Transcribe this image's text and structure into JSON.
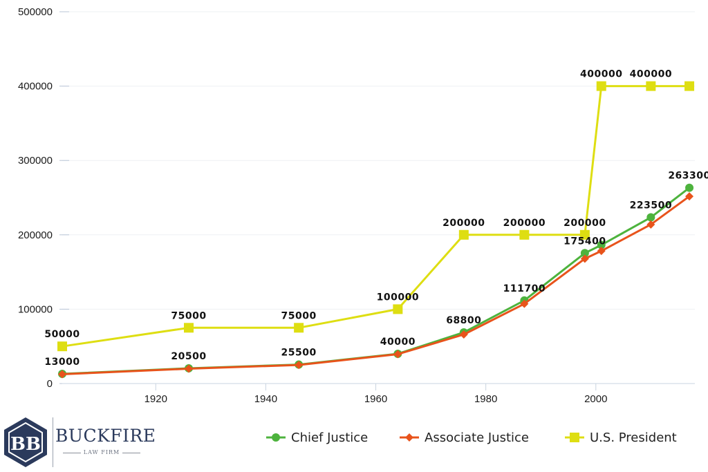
{
  "chart_data": {
    "type": "line",
    "title": "",
    "xlabel": "",
    "ylabel": "",
    "xlim": [
      1903,
      2018
    ],
    "ylim": [
      0,
      500000
    ],
    "y_ticks": [
      0,
      100000,
      200000,
      300000,
      400000,
      500000
    ],
    "x_ticks": [
      1920,
      1940,
      1960,
      1980,
      2000
    ],
    "grid": "horizontal",
    "legend_position": "bottom-right",
    "series": [
      {
        "name": "Chief Justice",
        "color": "#4db33d",
        "marker": "circle",
        "points": [
          {
            "x": 1903,
            "y": 13000
          },
          {
            "x": 1926,
            "y": 20500
          },
          {
            "x": 1946,
            "y": 25500
          },
          {
            "x": 1964,
            "y": 40000
          },
          {
            "x": 1976,
            "y": 68800
          },
          {
            "x": 1987,
            "y": 111700
          },
          {
            "x": 1998,
            "y": 175400
          },
          {
            "x": 2001,
            "y": 186300
          },
          {
            "x": 2010,
            "y": 223500
          },
          {
            "x": 2017,
            "y": 263300
          }
        ]
      },
      {
        "name": "Associate Justice",
        "color": "#e8531b",
        "marker": "diamond",
        "points": [
          {
            "x": 1903,
            "y": 12500
          },
          {
            "x": 1926,
            "y": 20000
          },
          {
            "x": 1946,
            "y": 25000
          },
          {
            "x": 1964,
            "y": 39500
          },
          {
            "x": 1976,
            "y": 66000
          },
          {
            "x": 1987,
            "y": 107200
          },
          {
            "x": 1998,
            "y": 167900
          },
          {
            "x": 2001,
            "y": 178300
          },
          {
            "x": 2010,
            "y": 213900
          },
          {
            "x": 2017,
            "y": 251800
          }
        ]
      },
      {
        "name": "U.S. President",
        "color": "#dede12",
        "marker": "square",
        "points": [
          {
            "x": 1903,
            "y": 50000
          },
          {
            "x": 1926,
            "y": 75000
          },
          {
            "x": 1946,
            "y": 75000
          },
          {
            "x": 1964,
            "y": 100000
          },
          {
            "x": 1976,
            "y": 200000
          },
          {
            "x": 1987,
            "y": 200000
          },
          {
            "x": 1998,
            "y": 200000
          },
          {
            "x": 2001,
            "y": 400000
          },
          {
            "x": 2010,
            "y": 400000
          },
          {
            "x": 2017,
            "y": 400000
          }
        ]
      }
    ],
    "data_labels": [
      {
        "x": 1903,
        "y": 50000,
        "text": "50000"
      },
      {
        "x": 1926,
        "y": 75000,
        "text": "75000"
      },
      {
        "x": 1946,
        "y": 75000,
        "text": "75000"
      },
      {
        "x": 1964,
        "y": 100000,
        "text": "100000"
      },
      {
        "x": 1976,
        "y": 200000,
        "text": "200000"
      },
      {
        "x": 1987,
        "y": 200000,
        "text": "200000"
      },
      {
        "x": 1998,
        "y": 200000,
        "text": "200000"
      },
      {
        "x": 2001,
        "y": 400000,
        "text": "400000"
      },
      {
        "x": 2010,
        "y": 400000,
        "text": "400000"
      },
      {
        "x": 1903,
        "y": 13000,
        "text": "13000"
      },
      {
        "x": 1926,
        "y": 20500,
        "text": "20500"
      },
      {
        "x": 1946,
        "y": 25500,
        "text": "25500"
      },
      {
        "x": 1964,
        "y": 40000,
        "text": "40000"
      },
      {
        "x": 1976,
        "y": 68800,
        "text": "68800"
      },
      {
        "x": 1987,
        "y": 111700,
        "text": "111700"
      },
      {
        "x": 1998,
        "y": 175400,
        "text": "175400"
      },
      {
        "x": 2010,
        "y": 223500,
        "text": "223500"
      },
      {
        "x": 2017,
        "y": 263300,
        "text": "263300"
      }
    ]
  },
  "brand": {
    "name": "BUCKFIRE",
    "tagline": "LAW FIRM",
    "monogram": "BB",
    "color": "#2b3a5c"
  }
}
